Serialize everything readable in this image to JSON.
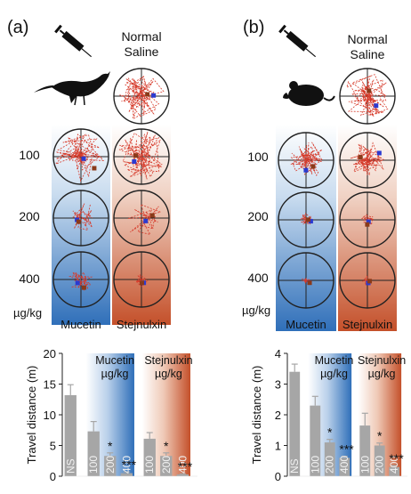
{
  "figure": {
    "panels": [
      {
        "id": "(a)",
        "label": "(a)",
        "animal": "bird",
        "top_label": [
          "Normal",
          "Saline"
        ],
        "doses": [
          "100",
          "200",
          "400"
        ],
        "unit": "µg/kg",
        "group_labels": [
          "Mucetin",
          "Stejnulxin"
        ],
        "chart": {
          "ylabel": "Travel distance (m)",
          "ylim": [
            0,
            20
          ],
          "yticks": [
            "0",
            "5",
            "10",
            "15",
            "20"
          ],
          "gradient_labels": [
            [
              "Mucetin",
              "µg/kg"
            ],
            [
              "Stejnulxin",
              "µg/kg"
            ]
          ]
        }
      },
      {
        "id": "(b)",
        "label": "(b)",
        "animal": "mouse",
        "top_label": [
          "Normal",
          "Saline"
        ],
        "doses": [
          "100",
          "200",
          "400"
        ],
        "unit": "µg/kg",
        "group_labels": [
          "Mucetin",
          "Stejnulxin"
        ],
        "chart": {
          "ylabel": "Travel distance (m)",
          "ylim": [
            0,
            4
          ],
          "yticks": [
            "0",
            "1",
            "2",
            "3",
            "4"
          ],
          "gradient_labels": [
            [
              "Mucetin",
              "µg/kg"
            ],
            [
              "Stejnulxin",
              "µg/kg"
            ]
          ]
        }
      }
    ],
    "colors": {
      "mucetin_blue": "#2f6fb9",
      "stejnulxin_orange": "#c4502a",
      "bar_gray": "#a6a6a6",
      "track_red": "#d63a2a"
    }
  },
  "chart_data": [
    {
      "type": "bar",
      "panel": "(a)",
      "categories": [
        "NS",
        "100",
        "200",
        "400",
        "100",
        "200",
        "400"
      ],
      "values": [
        13.2,
        7.3,
        3.3,
        0.5,
        6.1,
        3.3,
        0.3
      ],
      "errors": [
        1.7,
        1.6,
        0.5,
        0.2,
        1.0,
        0.5,
        0.1
      ],
      "significance": [
        "",
        "",
        "*",
        "***",
        "",
        "*",
        "***"
      ],
      "ylabel": "Travel distance (m)",
      "ylim": [
        0,
        20
      ],
      "yticks": [
        0,
        5,
        10,
        15,
        20
      ]
    },
    {
      "type": "bar",
      "panel": "(b)",
      "categories": [
        "NS",
        "100",
        "200",
        "400",
        "100",
        "200",
        "400"
      ],
      "values": [
        3.4,
        2.3,
        1.1,
        0.6,
        1.65,
        1.0,
        0.3
      ],
      "errors": [
        0.25,
        0.3,
        0.1,
        0.05,
        0.4,
        0.08,
        0.05
      ],
      "significance": [
        "",
        "",
        "*",
        "***",
        "",
        "*",
        "***"
      ],
      "ylabel": "Travel distance (m)",
      "ylim": [
        0,
        4
      ],
      "yticks": [
        0,
        1,
        2,
        3,
        4
      ]
    }
  ]
}
